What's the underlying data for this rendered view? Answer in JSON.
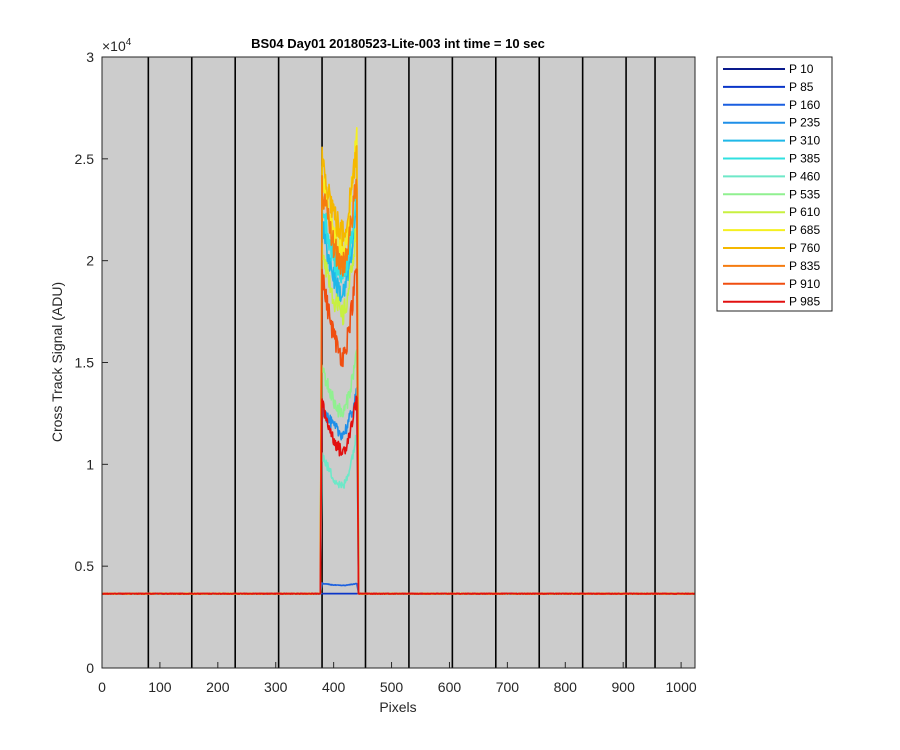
{
  "chart_data": {
    "type": "line",
    "title": "BS04 Day01 20180523-Lite-003 int time = 10 sec",
    "xlabel": "Pixels",
    "ylabel": "Cross Track Signal (ADU)",
    "xlim": [
      0,
      1024
    ],
    "ylim": [
      0,
      30000
    ],
    "x_ticks": [
      0,
      100,
      200,
      300,
      400,
      500,
      600,
      700,
      800,
      900,
      1000
    ],
    "y_ticks": [
      0,
      0.5,
      1,
      1.5,
      2,
      2.5,
      3
    ],
    "y_exponent_label": "×10",
    "y_exponent_power": "4",
    "axes_background": "#cccccc",
    "vertical_lines_x": [
      80,
      155,
      230,
      305,
      380,
      455,
      530,
      605,
      680,
      755,
      830,
      905,
      955
    ],
    "legend_position": "outside-top-right",
    "baseline": 3650,
    "plateau_start": 380,
    "plateau_end": 440,
    "series": [
      {
        "name": "P 10",
        "color": "#0a1a8c",
        "left": 3650,
        "min": 3650,
        "right": 3650
      },
      {
        "name": "P 85",
        "color": "#0a35c8",
        "left": 3650,
        "min": 3650,
        "right": 3650
      },
      {
        "name": "P 160",
        "color": "#1a5fe0",
        "left": 4150,
        "min": 4050,
        "right": 4150
      },
      {
        "name": "P 235",
        "color": "#1f8fe8",
        "left": 12800,
        "min": 11500,
        "right": 13500
      },
      {
        "name": "P 310",
        "color": "#1fb8e8",
        "left": 21800,
        "min": 18300,
        "right": 22500
      },
      {
        "name": "P 385",
        "color": "#30e0e0",
        "left": 22800,
        "min": 19300,
        "right": 23300
      },
      {
        "name": "P 460",
        "color": "#6ee8c8",
        "left": 10500,
        "min": 8900,
        "right": 11500
      },
      {
        "name": "P 535",
        "color": "#90f090",
        "left": 14800,
        "min": 12500,
        "right": 15500
      },
      {
        "name": "P 610",
        "color": "#c8f040",
        "left": 20800,
        "min": 17300,
        "right": 21800
      },
      {
        "name": "P 685",
        "color": "#f5f020",
        "left": 24200,
        "min": 20300,
        "right": 26400
      },
      {
        "name": "P 760",
        "color": "#f5b800",
        "left": 25300,
        "min": 21300,
        "right": 25800
      },
      {
        "name": "P 835",
        "color": "#f57c10",
        "left": 23500,
        "min": 19800,
        "right": 24000
      },
      {
        "name": "P 910",
        "color": "#f04e10",
        "left": 19300,
        "min": 15300,
        "right": 19800
      },
      {
        "name": "P 985",
        "color": "#e21010",
        "left": 13000,
        "min": 10600,
        "right": 13300
      }
    ]
  }
}
